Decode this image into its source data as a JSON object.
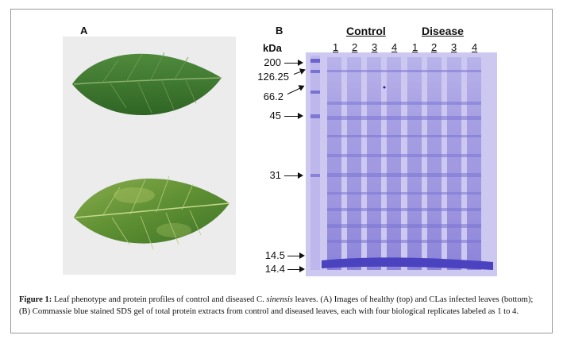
{
  "panels": {
    "a_label": "A",
    "b_label": "B"
  },
  "gel": {
    "unit_label": "kDa",
    "markers": [
      "200",
      "126.25",
      "66.2",
      "45",
      "31",
      "14.5",
      "14.4"
    ],
    "groups": [
      "Control",
      "Disease"
    ],
    "lane_labels": [
      "1",
      "2",
      "3",
      "4",
      "1",
      "2",
      "3",
      "4"
    ]
  },
  "caption": {
    "label": "Figure 1:",
    "text_before_italic": "Leaf phenotype and protein profiles of control and diseased C. ",
    "italic_term": "sinensis",
    "text_after_italic": " leaves. (A) Images of healthy (top) and CLas infected leaves (bottom); (B) Commassie blue stained SDS gel of total protein extracts from control and diseased leaves, each with four biological replicates labeled as 1 to 4."
  },
  "colors": {
    "gel_background": "#c9c4ee",
    "gel_band": "#5f57c9",
    "healthy_leaf": "#3f7a2f",
    "diseased_leaf": "#6f9a3a"
  }
}
